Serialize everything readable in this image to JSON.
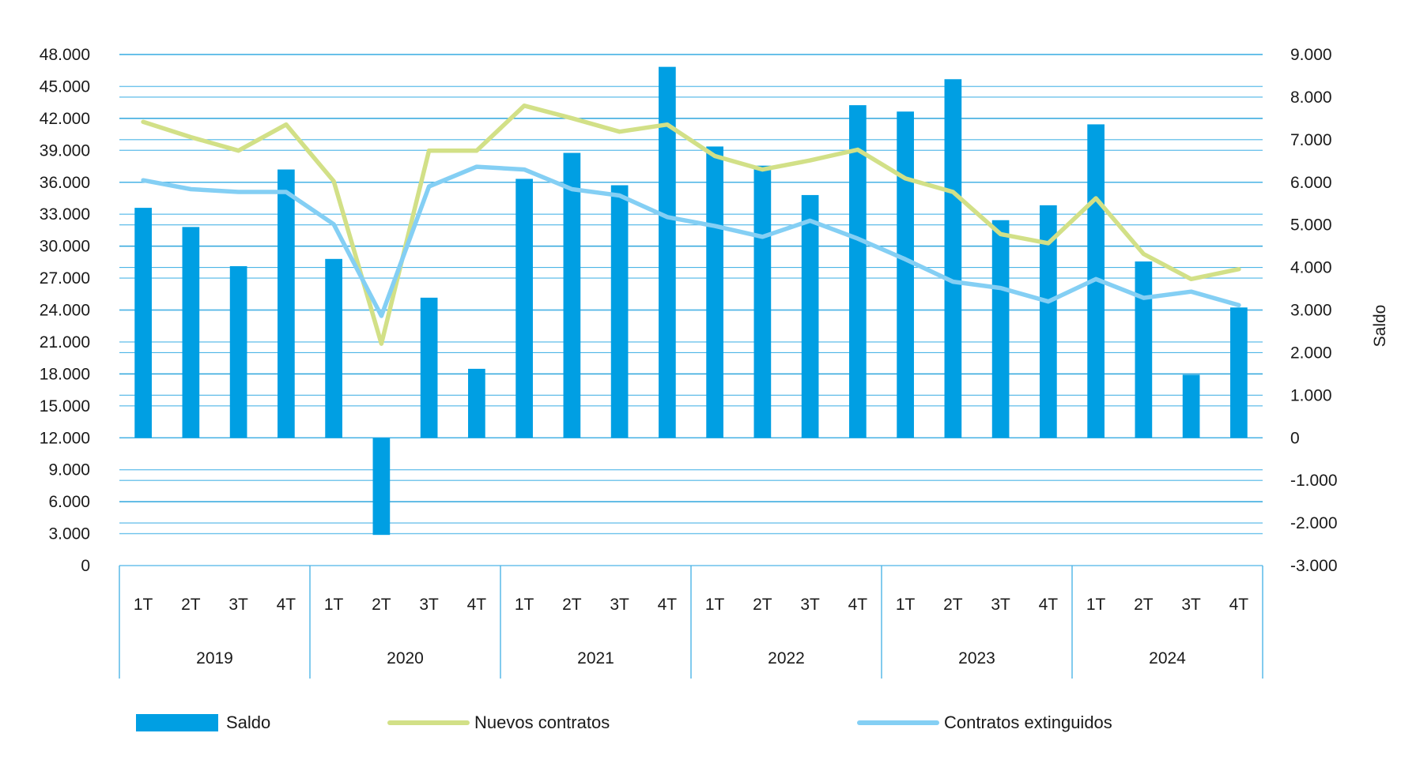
{
  "chart_data": {
    "type": "bar",
    "title": "",
    "xlabel": "",
    "ylabel_left": "",
    "ylabel_right": "Saldo",
    "y_left_range": [
      0,
      48000
    ],
    "y_left_ticks": [
      "48.000",
      "45.000",
      "42.000",
      "39.000",
      "36.000",
      "33.000",
      "30.000",
      "27.000",
      "24.000",
      "21.000",
      "18.000",
      "15.000",
      "12.000",
      "9.000",
      "6.000",
      "3.000",
      "0"
    ],
    "y_left_tick_values": [
      48000,
      45000,
      42000,
      39000,
      36000,
      33000,
      30000,
      27000,
      24000,
      21000,
      18000,
      15000,
      12000,
      9000,
      6000,
      3000,
      0
    ],
    "y_right_range": [
      -3000,
      9000
    ],
    "y_right_ticks": [
      "9.000",
      "8.000",
      "7.000",
      "6.000",
      "5.000",
      "4.000",
      "3.000",
      "2.000",
      "1.000",
      "0",
      "-1.000",
      "-2.000",
      "-3.000"
    ],
    "y_right_tick_values": [
      9000,
      8000,
      7000,
      6000,
      5000,
      4000,
      3000,
      2000,
      1000,
      0,
      -1000,
      -2000,
      -3000
    ],
    "grid": true,
    "legend_position": "bottom",
    "groups": [
      {
        "year": "2019",
        "quarters": [
          "1T",
          "2T",
          "3T",
          "4T"
        ]
      },
      {
        "year": "2020",
        "quarters": [
          "1T",
          "2T",
          "3T",
          "4T"
        ]
      },
      {
        "year": "2021",
        "quarters": [
          "1T",
          "2T",
          "3T",
          "4T"
        ]
      },
      {
        "year": "2022",
        "quarters": [
          "1T",
          "2T",
          "3T",
          "4T"
        ]
      },
      {
        "year": "2023",
        "quarters": [
          "1T",
          "2T",
          "3T",
          "4T"
        ]
      },
      {
        "year": "2024",
        "quarters": [
          "1T",
          "2T",
          "3T",
          "4T"
        ]
      }
    ],
    "series": [
      {
        "name": "Saldo",
        "type": "bar",
        "axis": "right",
        "color": "#009FE3",
        "values": [
          5400,
          4950,
          4030,
          6300,
          4200,
          -2280,
          3290,
          1620,
          6080,
          6690,
          5930,
          8710,
          6840,
          6390,
          5700,
          7810,
          7660,
          8420,
          5110,
          5460,
          7360,
          4140,
          1480,
          3060
        ]
      },
      {
        "name": "Nuevos contratos",
        "type": "line",
        "axis": "left",
        "color": "#D2E087",
        "values": [
          41670,
          40240,
          38970,
          41420,
          36100,
          20840,
          38970,
          38970,
          43190,
          42010,
          40750,
          41420,
          38470,
          37200,
          38050,
          39060,
          36360,
          35090,
          31130,
          30280,
          34500,
          29270,
          26910,
          27840
        ]
      },
      {
        "name": "Contratos extinguidos",
        "type": "line",
        "axis": "left",
        "color": "#84CFF4",
        "values": [
          36190,
          35350,
          35090,
          35090,
          32060,
          23450,
          35600,
          37460,
          37200,
          35350,
          34760,
          32730,
          31890,
          30880,
          32390,
          30710,
          28770,
          26660,
          26070,
          24800,
          26910,
          25140,
          25730,
          24460
        ]
      }
    ]
  },
  "legend": {
    "items": [
      {
        "label": "Saldo"
      },
      {
        "label": "Nuevos contratos"
      },
      {
        "label": "Contratos extinguidos"
      }
    ]
  }
}
